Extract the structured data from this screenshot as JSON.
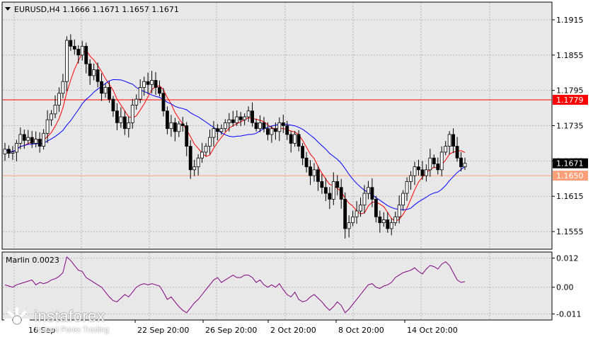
{
  "chart_data": [
    {
      "type": "candlestick",
      "title": "EURUSD,H4  1.1666 1.1671 1.1657 1.1671",
      "symbol": "EURUSD",
      "timeframe": "H4",
      "ohlc_header": {
        "open": 1.1666,
        "high": 1.1671,
        "low": 1.1657,
        "close": 1.1671
      },
      "ylim": [
        1.1525,
        1.1945
      ],
      "y_ticks": [
        "1.1915",
        "1.1855",
        "1.1795",
        "1.1735",
        "1.1675",
        "1.1615",
        "1.1555"
      ],
      "x_ticks": [
        "22 Sep 20:00",
        "26 Sep 20:00",
        "2 Oct 20:00",
        "8 Oct 20:00",
        "14 Oct 20:00"
      ],
      "x_tick_first_partial": "16 Sep",
      "grid": true,
      "current_price": {
        "value": 1.1671,
        "label": "1.1671",
        "color": "#000000"
      },
      "horizontal_levels": [
        {
          "value": 1.1779,
          "label": "1.1779",
          "color": "#ff0000"
        },
        {
          "value": 1.165,
          "label": "1.1650",
          "color": "#ffa07a"
        }
      ],
      "moving_averages": [
        {
          "color": "#ff0000",
          "period_type": "fast"
        },
        {
          "color": "#0000ff",
          "period_type": "slow"
        }
      ],
      "candle_closes": [
        1.1695,
        1.1688,
        1.169,
        1.1705,
        1.172,
        1.171,
        1.1715,
        1.1705,
        1.1712,
        1.17,
        1.1722,
        1.1745,
        1.1755,
        1.177,
        1.179,
        1.181,
        1.188,
        1.187,
        1.1865,
        1.1855,
        1.187,
        1.184,
        1.182,
        1.183,
        1.181,
        1.179,
        1.18,
        1.178,
        1.176,
        1.174,
        1.175,
        1.173,
        1.174,
        1.177,
        1.178,
        1.18,
        1.181,
        1.1805,
        1.1812,
        1.18,
        1.179,
        1.176,
        1.173,
        1.174,
        1.1725,
        1.1738,
        1.1735,
        1.17,
        1.166,
        1.1665,
        1.168,
        1.169,
        1.17,
        1.1715,
        1.173,
        1.1725,
        1.173,
        1.174,
        1.1745,
        1.174,
        1.175,
        1.1745,
        1.175,
        1.176,
        1.174,
        1.173,
        1.174,
        1.173,
        1.172,
        1.173,
        1.1725,
        1.174,
        1.1735,
        1.172,
        1.1705,
        1.172,
        1.17,
        1.168,
        1.1665,
        1.165,
        1.166,
        1.164,
        1.163,
        1.162,
        1.161,
        1.164,
        1.163,
        1.161,
        1.156,
        1.157,
        1.158,
        1.159,
        1.16,
        1.162,
        1.163,
        1.161,
        1.158,
        1.157,
        1.1575,
        1.156,
        1.157,
        1.158,
        1.16,
        1.162,
        1.164,
        1.165,
        1.1665,
        1.166,
        1.165,
        1.166,
        1.168,
        1.167,
        1.166,
        1.169,
        1.17,
        1.172,
        1.17,
        1.168,
        1.1665,
        1.1671
      ]
    },
    {
      "type": "line",
      "title": "Marlin 0.0023",
      "indicator": "Marlin",
      "value": 0.0023,
      "ylim": [
        -0.0135,
        0.0145
      ],
      "y_ticks": [
        "0.012",
        "0.00",
        "-0.011"
      ],
      "color": "#800080",
      "values": [
        0.001,
        0.0005,
        0.0,
        0.001,
        0.0015,
        0.002,
        0.0025,
        0.003,
        0.001,
        0.002,
        0.0015,
        0.002,
        0.003,
        0.0035,
        0.0045,
        0.006,
        0.0125,
        0.011,
        0.009,
        0.007,
        0.0065,
        0.004,
        0.003,
        0.002,
        0.001,
        0.0,
        -0.002,
        -0.004,
        -0.0055,
        -0.006,
        -0.0045,
        -0.003,
        -0.004,
        -0.002,
        0.0,
        0.001,
        0.0015,
        0.001,
        0.0015,
        0.001,
        0.0005,
        -0.002,
        -0.005,
        -0.004,
        -0.006,
        -0.008,
        -0.0095,
        -0.0105,
        -0.0085,
        -0.0065,
        -0.005,
        -0.003,
        -0.001,
        0.001,
        0.003,
        0.004,
        0.002,
        0.003,
        0.004,
        0.005,
        0.004,
        0.004,
        0.005,
        0.005,
        0.004,
        0.002,
        0.003,
        0.001,
        0.0,
        0.001,
        0.0,
        0.0015,
        -0.001,
        -0.003,
        -0.004,
        -0.002,
        -0.005,
        -0.006,
        -0.0055,
        -0.004,
        -0.003,
        -0.0045,
        -0.006,
        -0.008,
        -0.0095,
        -0.008,
        -0.006,
        -0.0075,
        -0.0105,
        -0.009,
        -0.007,
        -0.005,
        -0.003,
        -0.001,
        0.001,
        0.0015,
        0.0,
        -0.0005,
        0.0005,
        0.001,
        0.002,
        0.004,
        0.005,
        0.006,
        0.0065,
        0.007,
        0.008,
        0.0065,
        0.0055,
        0.0075,
        0.009,
        0.0085,
        0.0075,
        0.0095,
        0.0105,
        0.009,
        0.006,
        0.003,
        0.002,
        0.0023
      ]
    }
  ],
  "logo": {
    "name": "instaforex",
    "tagline": "Instant Forex Trading"
  }
}
